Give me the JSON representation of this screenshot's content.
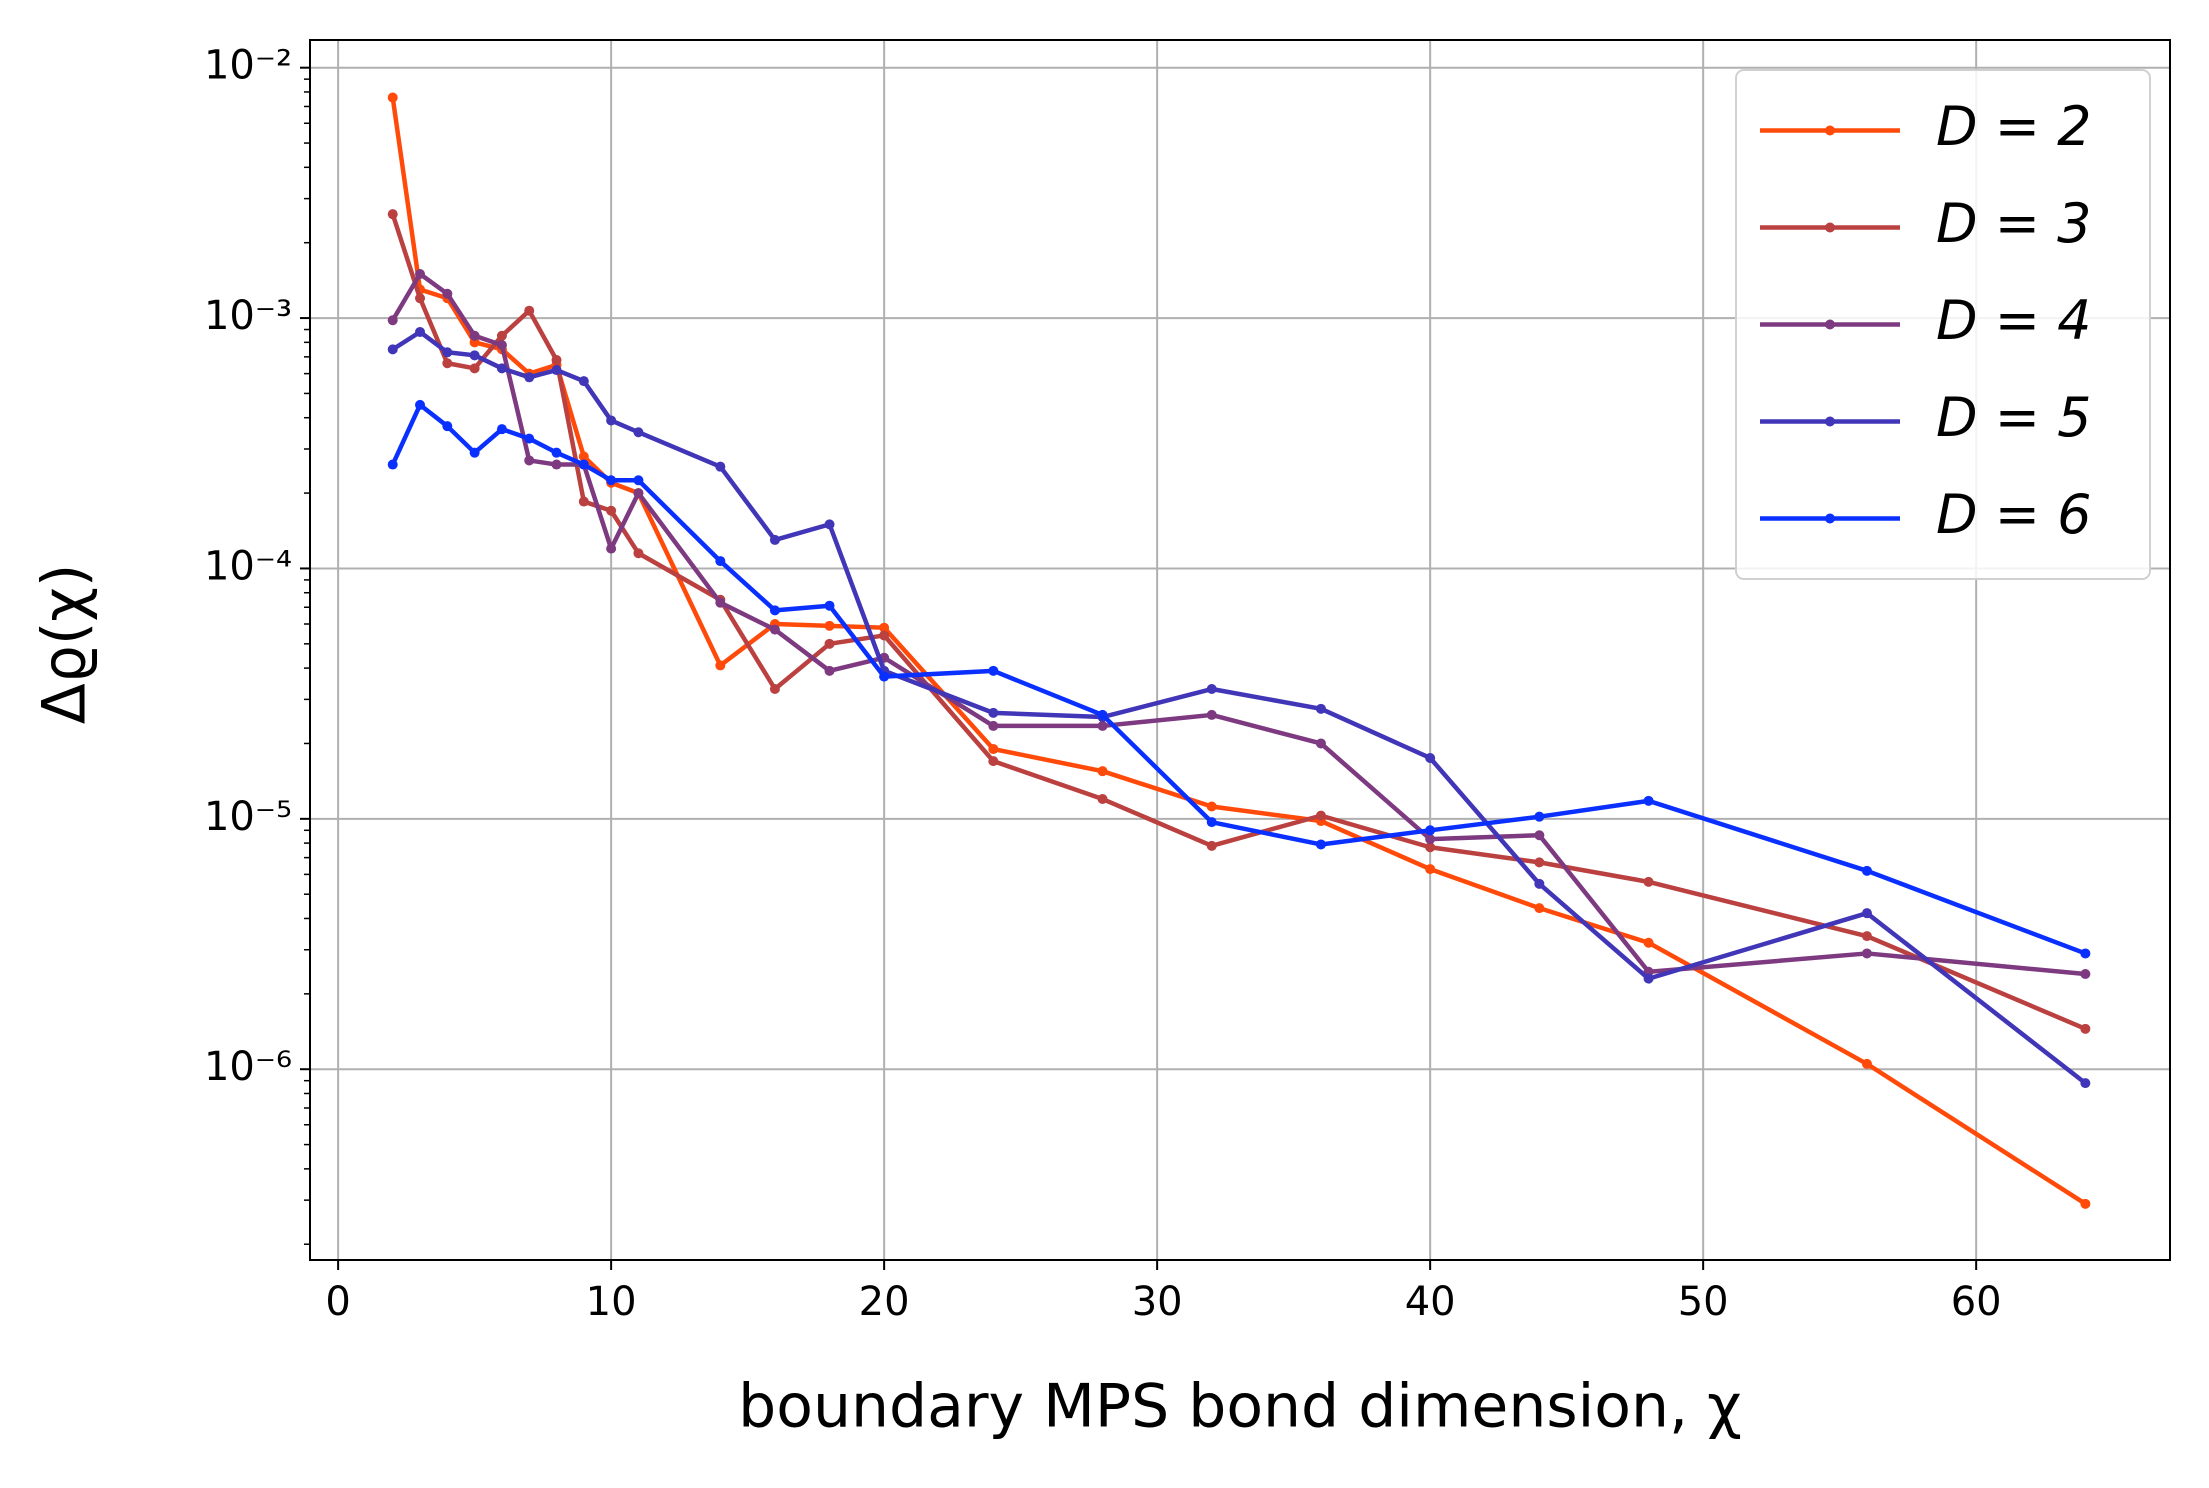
{
  "chart_data": {
    "type": "line",
    "x_label": "boundary MPS bond dimension, χ",
    "y_label": "Δϱ(χ)",
    "x": [
      2,
      3,
      4,
      5,
      6,
      7,
      8,
      9,
      10,
      11,
      14,
      16,
      18,
      20,
      24,
      28,
      32,
      36,
      40,
      44,
      48,
      56,
      64
    ],
    "series": [
      {
        "name": "D = 2",
        "color": "#ff4a0a",
        "values": [
          0.0076,
          0.0013,
          0.0012,
          0.0008,
          0.00075,
          0.0006,
          0.00065,
          0.00028,
          0.00022,
          0.0002,
          4.1e-05,
          6e-05,
          5.9e-05,
          5.8e-05,
          1.9e-05,
          1.55e-05,
          1.12e-05,
          9.8e-06,
          6.3e-06,
          4.4e-06,
          3.2e-06,
          1.05e-06,
          2.9e-07
        ]
      },
      {
        "name": "D = 3",
        "color": "#bb4040",
        "values": [
          0.0026,
          0.0012,
          0.00066,
          0.00063,
          0.00085,
          0.00107,
          0.00068,
          0.000185,
          0.00017,
          0.000115,
          7.5e-05,
          3.3e-05,
          5e-05,
          5.4e-05,
          1.7e-05,
          1.2e-05,
          7.8e-06,
          1.03e-05,
          7.7e-06,
          6.7e-06,
          5.6e-06,
          3.4e-06,
          1.45e-06
        ]
      },
      {
        "name": "D = 4",
        "color": "#7d3a80",
        "values": [
          0.00098,
          0.0015,
          0.00125,
          0.00085,
          0.00078,
          0.00027,
          0.00026,
          0.00026,
          0.00012,
          0.0002,
          7.3e-05,
          5.7e-05,
          3.9e-05,
          4.4e-05,
          2.35e-05,
          2.35e-05,
          2.6e-05,
          2e-05,
          8.3e-06,
          8.6e-06,
          2.45e-06,
          2.9e-06,
          2.4e-06
        ]
      },
      {
        "name": "D = 5",
        "color": "#4135b8",
        "values": [
          0.00075,
          0.00088,
          0.00073,
          0.00071,
          0.00063,
          0.00058,
          0.00062,
          0.00056,
          0.00039,
          0.00035,
          0.000255,
          0.00013,
          0.00015,
          3.9e-05,
          2.65e-05,
          2.55e-05,
          3.3e-05,
          2.75e-05,
          1.75e-05,
          5.5e-06,
          2.3e-06,
          4.2e-06,
          8.8e-07
        ]
      },
      {
        "name": "D = 6",
        "color": "#0a30ff",
        "values": [
          0.00026,
          0.00045,
          0.00037,
          0.00029,
          0.00036,
          0.00033,
          0.00029,
          0.00026,
          0.000225,
          0.000225,
          0.000107,
          6.8e-05,
          7.1e-05,
          3.7e-05,
          3.9e-05,
          2.6e-05,
          9.7e-06,
          7.9e-06,
          9e-06,
          1.02e-05,
          1.18e-05,
          6.2e-06,
          2.9e-06
        ]
      }
    ],
    "xlim": [
      -1.03,
      67.1
    ],
    "xticks": [
      0,
      10,
      20,
      30,
      40,
      50,
      60
    ],
    "ylim": [
      1.73e-07,
      0.0129
    ],
    "yscale": "log",
    "yticks": [
      {
        "value": 1e-06,
        "label": "10⁻⁶"
      },
      {
        "value": 1e-05,
        "label": "10⁻⁵"
      },
      {
        "value": 0.0001,
        "label": "10⁻⁴"
      },
      {
        "value": 0.001,
        "label": "10⁻³"
      },
      {
        "value": 0.01,
        "label": "10⁻²"
      }
    ],
    "grid": true,
    "legend": "upper right"
  }
}
